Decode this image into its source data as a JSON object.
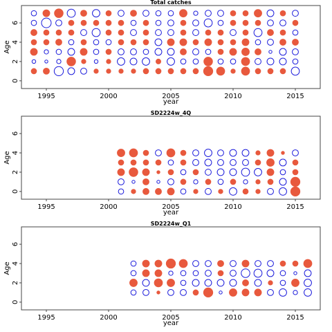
{
  "colors": {
    "positive": "#e8593d",
    "negative": "#1a1adb",
    "frame": "#444444"
  },
  "chart_data": [
    {
      "type": "scatter",
      "title": "Total catches",
      "xlabel": "year",
      "ylabel": "Age",
      "xlim": [
        1993,
        2017
      ],
      "ylim": [
        -0.8,
        7.8
      ],
      "xticks": [
        "1995",
        "2000",
        "2005",
        "2010",
        "2015"
      ],
      "yticks": [
        "0",
        "2",
        "4",
        "6"
      ],
      "x": [
        1994,
        1995,
        1996,
        1997,
        1998,
        1999,
        2000,
        2001,
        2002,
        2003,
        2004,
        2005,
        2006,
        2007,
        2008,
        2009,
        2010,
        2011,
        2012,
        2013,
        2014,
        2015
      ],
      "ages": [
        1,
        2,
        3,
        4,
        5,
        6,
        7
      ],
      "residuals": [
        [
          0.3,
          0.4,
          -0.9,
          -0.5,
          -0.4,
          0.2,
          0.2,
          0.2,
          0.2,
          0.3,
          0.3,
          0.3,
          0.3,
          0.3,
          0.9,
          0.7,
          0.2,
          0.7,
          0.3,
          0.3,
          0.3,
          -0.7
        ],
        [
          -0.15,
          -0.1,
          -0.2,
          0.8,
          0.2,
          -0.15,
          0.2,
          -0.6,
          -0.5,
          -0.6,
          0.25,
          -0.6,
          -0.3,
          -0.3,
          0.8,
          -0.3,
          -0.3,
          0.7,
          -0.4,
          -0.5,
          -0.5,
          -0.3
        ],
        [
          0.5,
          -0.2,
          -0.3,
          -0.5,
          0.5,
          -0.3,
          0.3,
          -0.4,
          -0.4,
          -0.3,
          -0.5,
          -0.5,
          0.4,
          -0.4,
          -0.3,
          0.3,
          0.5,
          0.6,
          0.4,
          -0.1,
          -0.5,
          -0.4
        ],
        [
          0.3,
          0.3,
          0.4,
          -0.3,
          0.3,
          -0.3,
          -0.3,
          0.3,
          0.3,
          0.3,
          -0.5,
          0.5,
          0.5,
          0.3,
          0.5,
          0.3,
          0.3,
          0.5,
          -0.3,
          -0.4,
          0.4,
          0.4
        ],
        [
          0.4,
          0.3,
          0.3,
          0.3,
          -0.4,
          -0.7,
          0.3,
          0.3,
          -0.4,
          0.3,
          -0.4,
          -0.4,
          0.3,
          -0.4,
          0.3,
          0.3,
          -0.4,
          0.3,
          -0.7,
          0.4,
          0.3,
          -0.3
        ],
        [
          -0.3,
          -1.0,
          -0.4,
          0.3,
          0.3,
          0.3,
          0.3,
          0.3,
          -0.3,
          0.3,
          -0.3,
          -0.4,
          0.3,
          -0.4,
          -0.7,
          -0.3,
          0.3,
          0.3,
          0.3,
          -0.4,
          -0.4,
          0.3
        ],
        [
          -0.3,
          0.5,
          0.8,
          -0.7,
          0.4,
          -0.6,
          0.3,
          -0.4,
          0.4,
          -0.4,
          -0.3,
          -0.3,
          0.6,
          -0.2,
          -0.4,
          -0.4,
          0.3,
          0.3,
          0.6,
          -0.5,
          0.3,
          -0.4
        ]
      ]
    },
    {
      "type": "scatter",
      "title": "SD2224w_4Q",
      "xlabel": "year",
      "ylabel": "Age",
      "xlim": [
        1993,
        2017
      ],
      "ylim": [
        -0.8,
        7.8
      ],
      "xticks": [
        "1995",
        "2000",
        "2005",
        "2010",
        "2015"
      ],
      "yticks": [
        "0",
        "2",
        "4",
        "6"
      ],
      "x": [
        2001,
        2002,
        2003,
        2004,
        2005,
        2006,
        2007,
        2008,
        2009,
        2010,
        2011,
        2012,
        2013,
        2014,
        2015
      ],
      "ages": [
        0,
        1,
        2,
        3,
        4
      ],
      "residuals": [
        [
          -0.3,
          0.2,
          0.4,
          0.4,
          0.5,
          -0.3,
          0.2,
          -0.4,
          0.2,
          -0.6,
          0.3,
          0.2,
          -0.4,
          -0.6,
          0.9
        ],
        [
          -0.4,
          -0.1,
          0.4,
          -0.1,
          -0.4,
          0.3,
          -0.2,
          0.3,
          -0.3,
          0.3,
          -0.2,
          0.2,
          0.3,
          -0.5,
          0.9
        ],
        [
          0.5,
          0.8,
          0.5,
          0.1,
          0.3,
          -0.3,
          0.3,
          -0.4,
          -0.5,
          -0.5,
          -0.7,
          -0.6,
          0.5,
          -0.3,
          0.3
        ],
        [
          0.3,
          0.3,
          0.3,
          0.3,
          -0.3,
          0.3,
          -0.4,
          -0.5,
          -0.4,
          -0.4,
          -0.4,
          0.3,
          0.6,
          -0.5,
          0.3
        ],
        [
          0.6,
          0.7,
          0.3,
          -0.4,
          0.7,
          0.3,
          -0.4,
          -0.6,
          -0.4,
          -0.5,
          -0.5,
          0.2,
          0.5,
          0.1,
          -0.4
        ]
      ]
    },
    {
      "type": "scatter",
      "title": "SD2224w_Q1",
      "xlabel": "year",
      "ylabel": "Age",
      "xlim": [
        1993,
        2017
      ],
      "ylim": [
        -0.8,
        7.8
      ],
      "xticks": [
        "1995",
        "2000",
        "2005",
        "2010",
        "2015"
      ],
      "yticks": [
        "0",
        "2",
        "4",
        "6"
      ],
      "x": [
        2002,
        2003,
        2004,
        2005,
        2006,
        2007,
        2008,
        2009,
        2010,
        2011,
        2012,
        2013,
        2014,
        2015,
        2016
      ],
      "ages": [
        1,
        2,
        3,
        4
      ],
      "residuals": [
        [
          -0.3,
          -0.4,
          0.1,
          -0.4,
          -0.4,
          0.3,
          0.9,
          -0.1,
          0.6,
          0.5,
          0.5,
          -0.4,
          -0.6,
          -0.2,
          -0.6
        ],
        [
          0.6,
          -0.5,
          0.7,
          0.6,
          -0.3,
          -0.5,
          -0.5,
          -0.5,
          -0.5,
          0.4,
          -0.5,
          0.2,
          -0.3,
          0.6,
          -0.6
        ],
        [
          -0.3,
          0.5,
          0.5,
          -0.2,
          -0.3,
          -0.3,
          -0.4,
          0.3,
          -0.4,
          -0.8,
          -0.7,
          -0.5,
          -0.3,
          -0.1,
          -0.5
        ],
        [
          -0.3,
          0.5,
          0.5,
          0.9,
          0.7,
          -0.4,
          -0.4,
          0.4,
          -0.4,
          0.5,
          -0.4,
          -0.4,
          0.3,
          0.3,
          0.7
        ]
      ]
    }
  ]
}
